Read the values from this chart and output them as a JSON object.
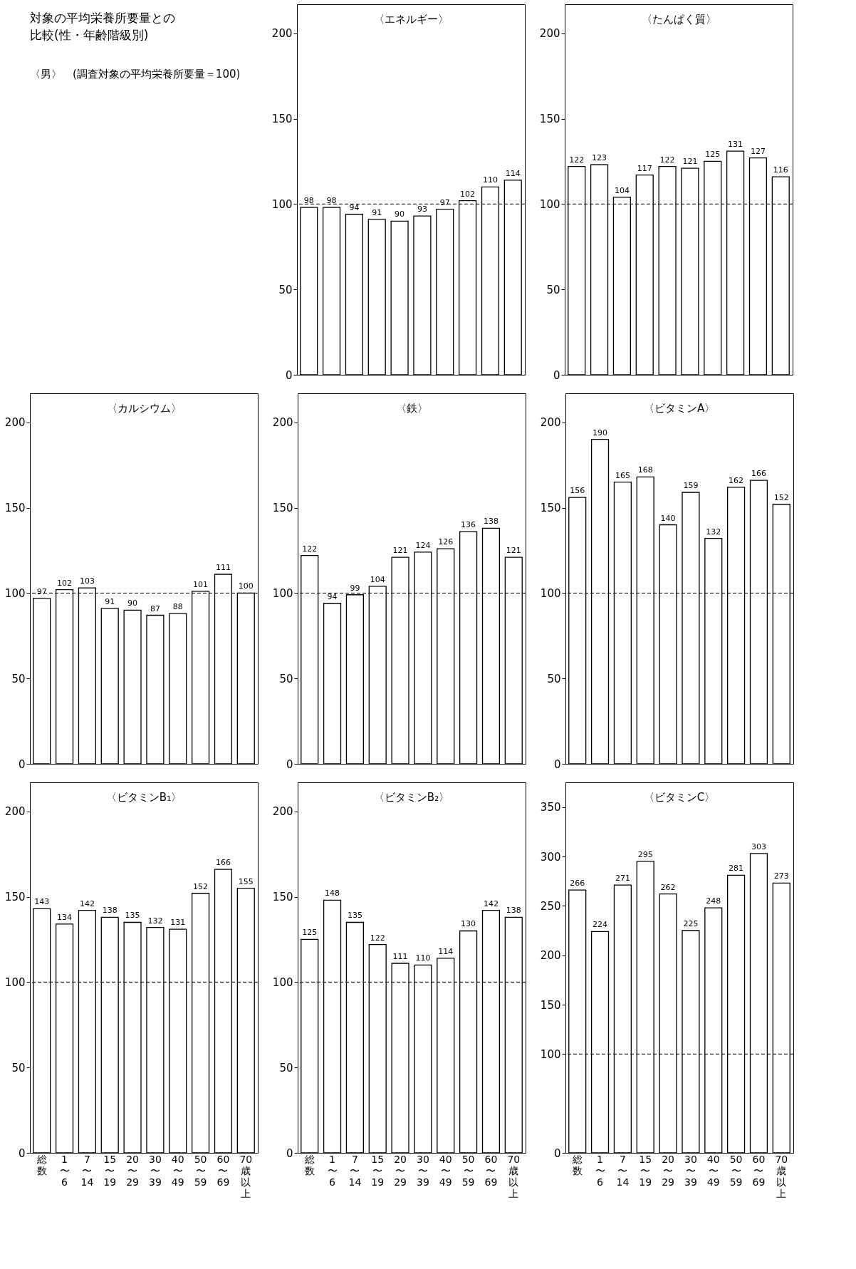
{
  "chart_data": [
    {
      "type": "other",
      "title": "対象の平均栄養所要量との比較(性・年齢階級別)",
      "annotations": [
        "〈男〉",
        "(調査対象の平均栄養所要量＝100)"
      ]
    },
    {
      "type": "bar",
      "title": "〈エネルギー〉",
      "categories": [
        "総数",
        "1〜6",
        "7〜14",
        "15〜19",
        "20〜29",
        "30〜39",
        "40〜49",
        "50〜59",
        "60〜69",
        "70歳以上"
      ],
      "color": "#ffffff",
      "values": [
        98,
        98,
        94,
        91,
        90,
        93,
        97,
        102,
        110,
        114
      ],
      "ylim": [
        0,
        217
      ],
      "yticks": [
        0,
        50,
        100,
        150,
        200
      ],
      "grid": false,
      "data_labels": true,
      "tick_labels": "y",
      "ref_lines": [
        {
          "axis": "y",
          "value": 100,
          "line_style": "dashed"
        }
      ]
    },
    {
      "type": "bar",
      "title": "〈たんぱく質〉",
      "categories": [
        "総数",
        "1〜6",
        "7〜14",
        "15〜19",
        "20〜29",
        "30〜39",
        "40〜49",
        "50〜59",
        "60〜69",
        "70歳以上"
      ],
      "color": "#ffffff",
      "values": [
        122,
        123,
        104,
        117,
        122,
        121,
        125,
        131,
        127,
        116
      ],
      "ylim": [
        0,
        217
      ],
      "yticks": [
        0,
        50,
        100,
        150,
        200
      ],
      "grid": false,
      "data_labels": true,
      "tick_labels": "y",
      "ref_lines": [
        {
          "axis": "y",
          "value": 100,
          "line_style": "dashed"
        }
      ]
    },
    {
      "type": "bar",
      "title": "〈カルシウム〉",
      "categories": [
        "総数",
        "1〜6",
        "7〜14",
        "15〜19",
        "20〜29",
        "30〜39",
        "40〜49",
        "50〜59",
        "60〜69",
        "70歳以上"
      ],
      "color": "#ffffff",
      "values": [
        97,
        102,
        103,
        91,
        90,
        87,
        88,
        101,
        111,
        100
      ],
      "ylim": [
        0,
        217
      ],
      "yticks": [
        0,
        50,
        100,
        150,
        200
      ],
      "grid": false,
      "data_labels": true,
      "tick_labels": "y",
      "ref_lines": [
        {
          "axis": "y",
          "value": 100,
          "line_style": "dashed"
        }
      ]
    },
    {
      "type": "bar",
      "title": "〈鉄〉",
      "categories": [
        "総数",
        "1〜6",
        "7〜14",
        "15〜19",
        "20〜29",
        "30〜39",
        "40〜49",
        "50〜59",
        "60〜69",
        "70歳以上"
      ],
      "color": "#ffffff",
      "values": [
        122,
        94,
        99,
        104,
        121,
        124,
        126,
        136,
        138,
        121
      ],
      "ylim": [
        0,
        217
      ],
      "yticks": [
        0,
        50,
        100,
        150,
        200
      ],
      "grid": false,
      "data_labels": true,
      "tick_labels": "y",
      "ref_lines": [
        {
          "axis": "y",
          "value": 100,
          "line_style": "dashed"
        }
      ]
    },
    {
      "type": "bar",
      "title": "〈ビタミンA〉",
      "categories": [
        "総数",
        "1〜6",
        "7〜14",
        "15〜19",
        "20〜29",
        "30〜39",
        "40〜49",
        "50〜59",
        "60〜69",
        "70歳以上"
      ],
      "color": "#ffffff",
      "values": [
        156,
        190,
        165,
        168,
        140,
        159,
        132,
        162,
        166,
        152
      ],
      "ylim": [
        0,
        217
      ],
      "yticks": [
        0,
        50,
        100,
        150,
        200
      ],
      "grid": false,
      "data_labels": true,
      "tick_labels": "y",
      "ref_lines": [
        {
          "axis": "y",
          "value": 100,
          "line_style": "dashed"
        }
      ]
    },
    {
      "type": "bar",
      "title": "〈ビタミンB₁〉",
      "categories": [
        "総数",
        "1〜6",
        "7〜14",
        "15〜19",
        "20〜29",
        "30〜39",
        "40〜49",
        "50〜59",
        "60〜69",
        "70歳以上"
      ],
      "color": "#ffffff",
      "values": [
        143,
        134,
        142,
        138,
        135,
        132,
        131,
        152,
        166,
        155
      ],
      "ylim": [
        0,
        217
      ],
      "yticks": [
        0,
        50,
        100,
        150,
        200
      ],
      "grid": false,
      "data_labels": true,
      "ref_lines": [
        {
          "axis": "y",
          "value": 100,
          "line_style": "dashed"
        }
      ]
    },
    {
      "type": "bar",
      "title": "〈ビタミンB₂〉",
      "categories": [
        "総数",
        "1〜6",
        "7〜14",
        "15〜19",
        "20〜29",
        "30〜39",
        "40〜49",
        "50〜59",
        "60〜69",
        "70歳以上"
      ],
      "color": "#ffffff",
      "values": [
        125,
        148,
        135,
        122,
        111,
        110,
        114,
        130,
        142,
        138
      ],
      "ylim": [
        0,
        217
      ],
      "yticks": [
        0,
        50,
        100,
        150,
        200
      ],
      "grid": false,
      "data_labels": true,
      "ref_lines": [
        {
          "axis": "y",
          "value": 100,
          "line_style": "dashed"
        }
      ]
    },
    {
      "type": "bar",
      "title": "〈ビタミンC〉",
      "categories": [
        "総数",
        "1〜6",
        "7〜14",
        "15〜19",
        "20〜29",
        "30〜39",
        "40〜49",
        "50〜59",
        "60〜69",
        "70歳以上"
      ],
      "color": "#ffffff",
      "values": [
        266,
        224,
        271,
        295,
        262,
        225,
        248,
        281,
        303,
        273
      ],
      "ylim": [
        0,
        375
      ],
      "yticks": [
        0,
        100,
        150,
        200,
        250,
        300,
        350
      ],
      "grid": false,
      "data_labels": true,
      "ref_lines": [
        {
          "axis": "y",
          "value": 100,
          "line_style": "dashed"
        }
      ]
    }
  ]
}
